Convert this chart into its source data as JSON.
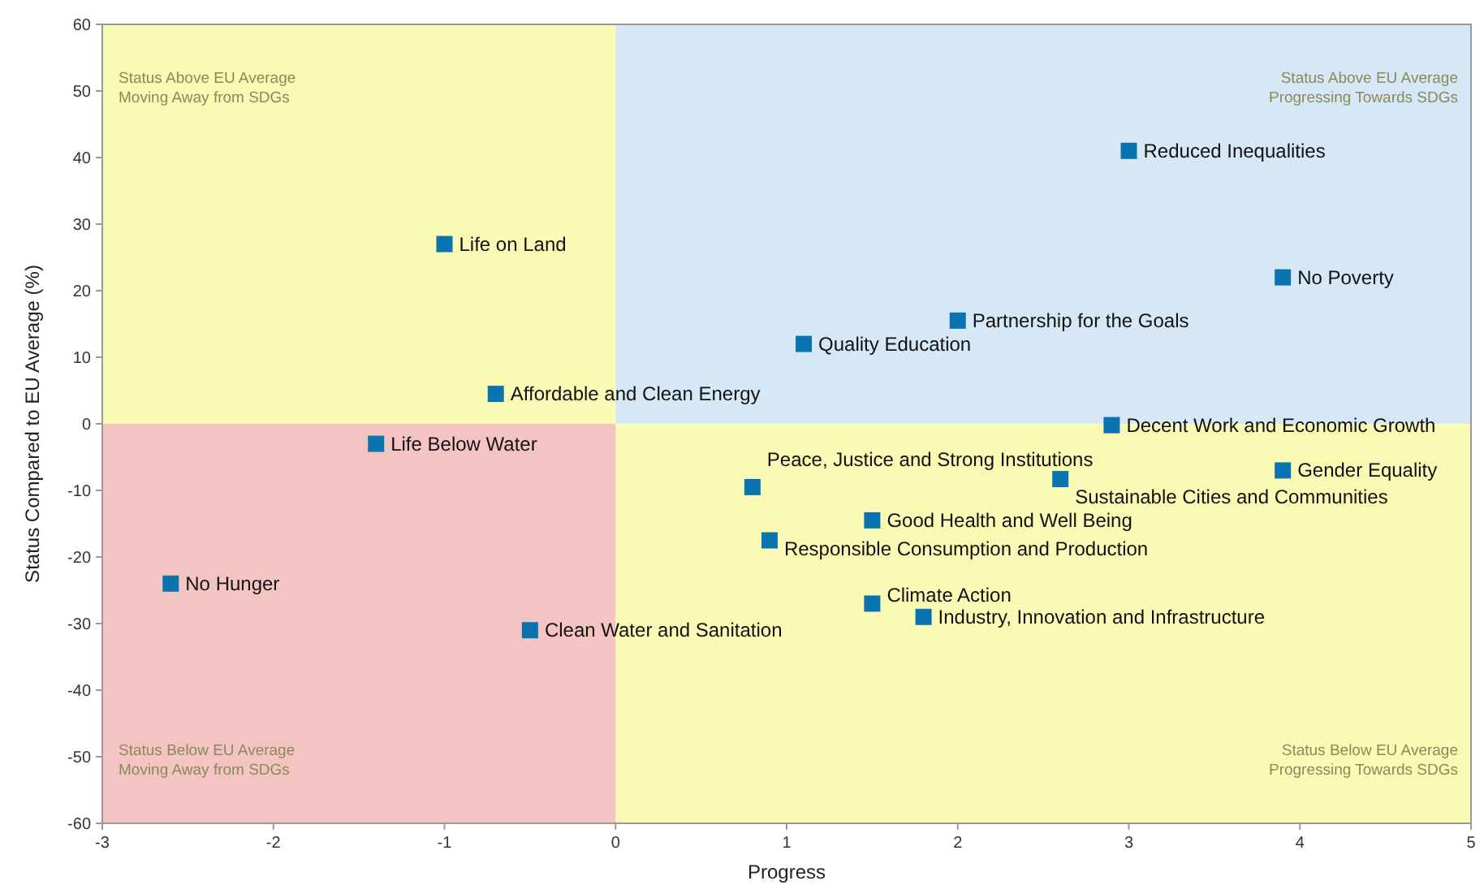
{
  "chart_data": {
    "type": "scatter",
    "xlabel": "Progress",
    "ylabel": "Status Compared to EU Average (%)",
    "xlim": [
      -3,
      5
    ],
    "ylim": [
      -60,
      60
    ],
    "xticks": [
      -3,
      -2,
      -1,
      0,
      1,
      2,
      3,
      4,
      5
    ],
    "yticks": [
      -60,
      -50,
      -40,
      -30,
      -20,
      -10,
      0,
      10,
      20,
      30,
      40,
      50,
      60
    ],
    "grid": false,
    "marker": "square",
    "series": [
      {
        "color": "#0a74b0",
        "x": [
          3.0,
          3.9,
          2.0,
          1.1,
          -1.0,
          -0.7,
          -1.4,
          -2.6,
          -0.5,
          2.9,
          3.9,
          2.6,
          0.8,
          1.5,
          0.9,
          1.5,
          1.8
        ],
        "values": [
          41,
          22,
          15.5,
          12,
          27,
          4.5,
          -3,
          -24,
          -31,
          -0.2,
          -7,
          -8.3,
          -9.5,
          -14.5,
          -17.5,
          -27,
          -29
        ]
      }
    ],
    "annotations": [
      "Status Above EU Average\nMoving Away from SDGs",
      "Status Above EU Average\nProgressing Towards SDGs",
      "Status Below EU Average\nMoving Away from SDGs",
      "Status Below EU Average\nProgressing Towards SDGs",
      {
        "text": "Reduced Inequalities",
        "x": 3.0,
        "y": 41
      },
      {
        "text": "No Poverty",
        "x": 3.9,
        "y": 22
      },
      {
        "text": "Partnership for the Goals",
        "x": 2.0,
        "y": 15.5
      },
      {
        "text": "Quality Education",
        "x": 1.1,
        "y": 12
      },
      {
        "text": "Life on Land",
        "x": -1.0,
        "y": 27
      },
      {
        "text": "Affordable and Clean Energy",
        "x": -0.7,
        "y": 4.5
      },
      {
        "text": "Life Below Water",
        "x": -1.4,
        "y": -3
      },
      {
        "text": "No Hunger",
        "x": -2.6,
        "y": -24
      },
      {
        "text": "Clean Water and Sanitation",
        "x": -0.5,
        "y": -31
      },
      {
        "text": "Decent Work and Economic Growth",
        "x": 2.9,
        "y": -0.2
      },
      {
        "text": "Gender Equality",
        "x": 3.9,
        "y": -7
      },
      {
        "text": "Sustainable Cities and Communities",
        "x": 2.6,
        "y": -8.3
      },
      {
        "text": "Peace, Justice and Strong Institutions",
        "x": 0.8,
        "y": -9.5
      },
      {
        "text": "Good Health and Well Being",
        "x": 1.5,
        "y": -14.5
      },
      {
        "text": "Responsible Consumption and Production",
        "x": 0.9,
        "y": -17.5
      },
      {
        "text": "Climate Action",
        "x": 1.5,
        "y": -27
      },
      {
        "text": "Industry, Innovation and Infrastructure",
        "x": 1.8,
        "y": -29
      }
    ]
  }
}
